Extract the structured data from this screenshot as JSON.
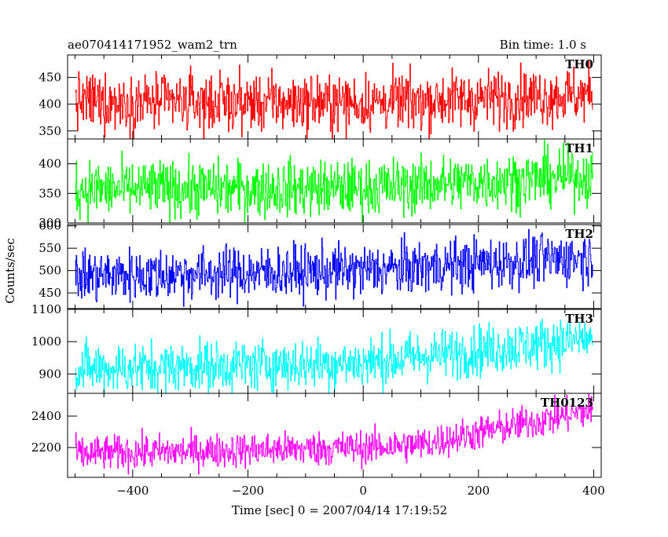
{
  "header": {
    "left_title": "ae070414171952_wam2_trn",
    "right_title": "Bin time: 1.0 s"
  },
  "chart_data": {
    "type": "line",
    "title": "ae070414171952_wam2_trn",
    "subtitle": "Bin time: 1.0 s",
    "xlabel": "Time [sec] 0 = 2007/04/14 17:19:52",
    "ylabel": "Counts/sec",
    "xlim": [
      -513,
      413
    ],
    "x_ticks": [
      -400,
      -200,
      0,
      200,
      400
    ],
    "x_start": -500,
    "x_end": 398,
    "x_step": 1,
    "panels": [
      {
        "name": "TH0",
        "color": "#ff0000",
        "ylim": [
          335,
          492
        ],
        "y_ticks": [
          350,
          400,
          450
        ],
        "trend": {
          "x": [
            -500,
            0,
            398
          ],
          "y": [
            405,
            402,
            418
          ]
        },
        "noise_amplitude": 27
      },
      {
        "name": "TH1",
        "color": "#00ff00",
        "ylim": [
          300,
          442
        ],
        "y_ticks": [
          300,
          350,
          400
        ],
        "trend": {
          "x": [
            -500,
            0,
            398
          ],
          "y": [
            357,
            359,
            380
          ]
        },
        "noise_amplitude": 24
      },
      {
        "name": "TH2",
        "color": "#0000ff",
        "ylim": [
          415,
          603
        ],
        "y_ticks": [
          450,
          500,
          550,
          600
        ],
        "trend": {
          "x": [
            -500,
            0,
            398
          ],
          "y": [
            488,
            500,
            530
          ]
        },
        "noise_amplitude": 30
      },
      {
        "name": "TH3",
        "color": "#00ffff",
        "ylim": [
          840,
          1100
        ],
        "y_ticks": [
          900,
          1000,
          1100
        ],
        "trend": {
          "x": [
            -500,
            0,
            398
          ],
          "y": [
            915,
            935,
            1010
          ]
        },
        "noise_amplitude": 40
      },
      {
        "name": "TH0123",
        "color": "#ff00ff",
        "ylim": [
          2010,
          2545
        ],
        "y_ticks": [
          2200,
          2400
        ],
        "trend": {
          "x": [
            -500,
            0,
            100,
            398
          ],
          "y": [
            2160,
            2200,
            2220,
            2440
          ]
        },
        "noise_amplitude": 55
      }
    ]
  }
}
